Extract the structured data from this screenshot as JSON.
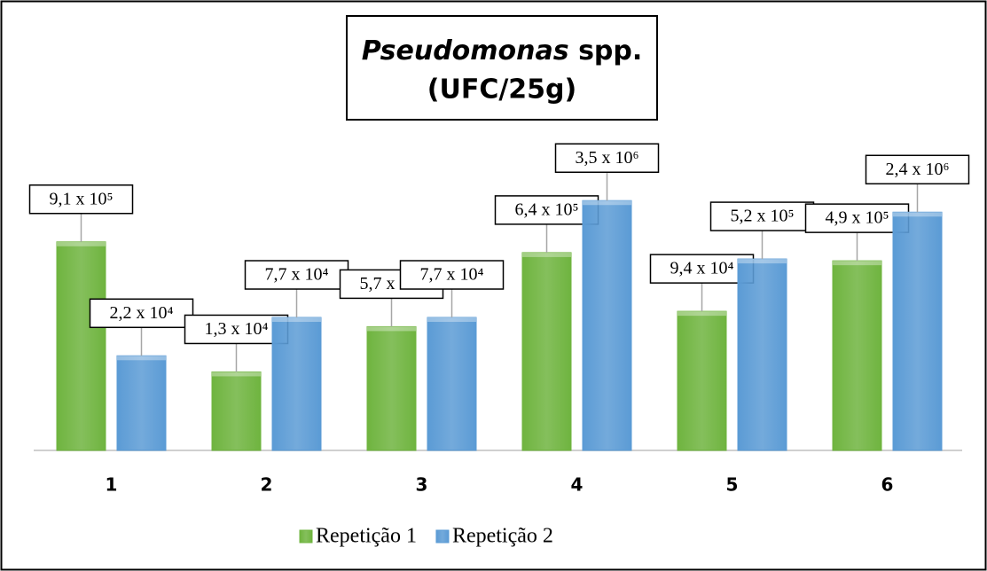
{
  "chart_data": {
    "type": "bar",
    "title": "Pseudomonas spp.",
    "subtitle": "(UFC/25g)",
    "categories": [
      "1",
      "2",
      "3",
      "4",
      "5",
      "6"
    ],
    "series": [
      {
        "name": "Repetição 1",
        "color": "#6fb43f",
        "values": [
          910000,
          13000,
          57000,
          640000,
          94000,
          490000
        ],
        "value_labels": [
          "9,1 x 10⁵",
          "1,3 x 10⁴",
          "5,7 x 10⁴",
          "6,4 x 10⁵",
          "9,4 x 10⁴",
          "4,9 x 10⁵"
        ]
      },
      {
        "name": "Repetição 2",
        "color": "#5b9bd5",
        "values": [
          22000,
          77000,
          77000,
          3500000,
          520000,
          2400000
        ],
        "value_labels": [
          "2,2 x 10⁴",
          "7,7 x 10⁴",
          "7,7 x 10⁴",
          "3,5 x 10⁶",
          "5,2 x 10⁵",
          "2,4 x 10⁶"
        ]
      }
    ],
    "ylim": [
      1000,
      10000000
    ],
    "log_scale": true,
    "grid": false,
    "legend": "bottom"
  }
}
